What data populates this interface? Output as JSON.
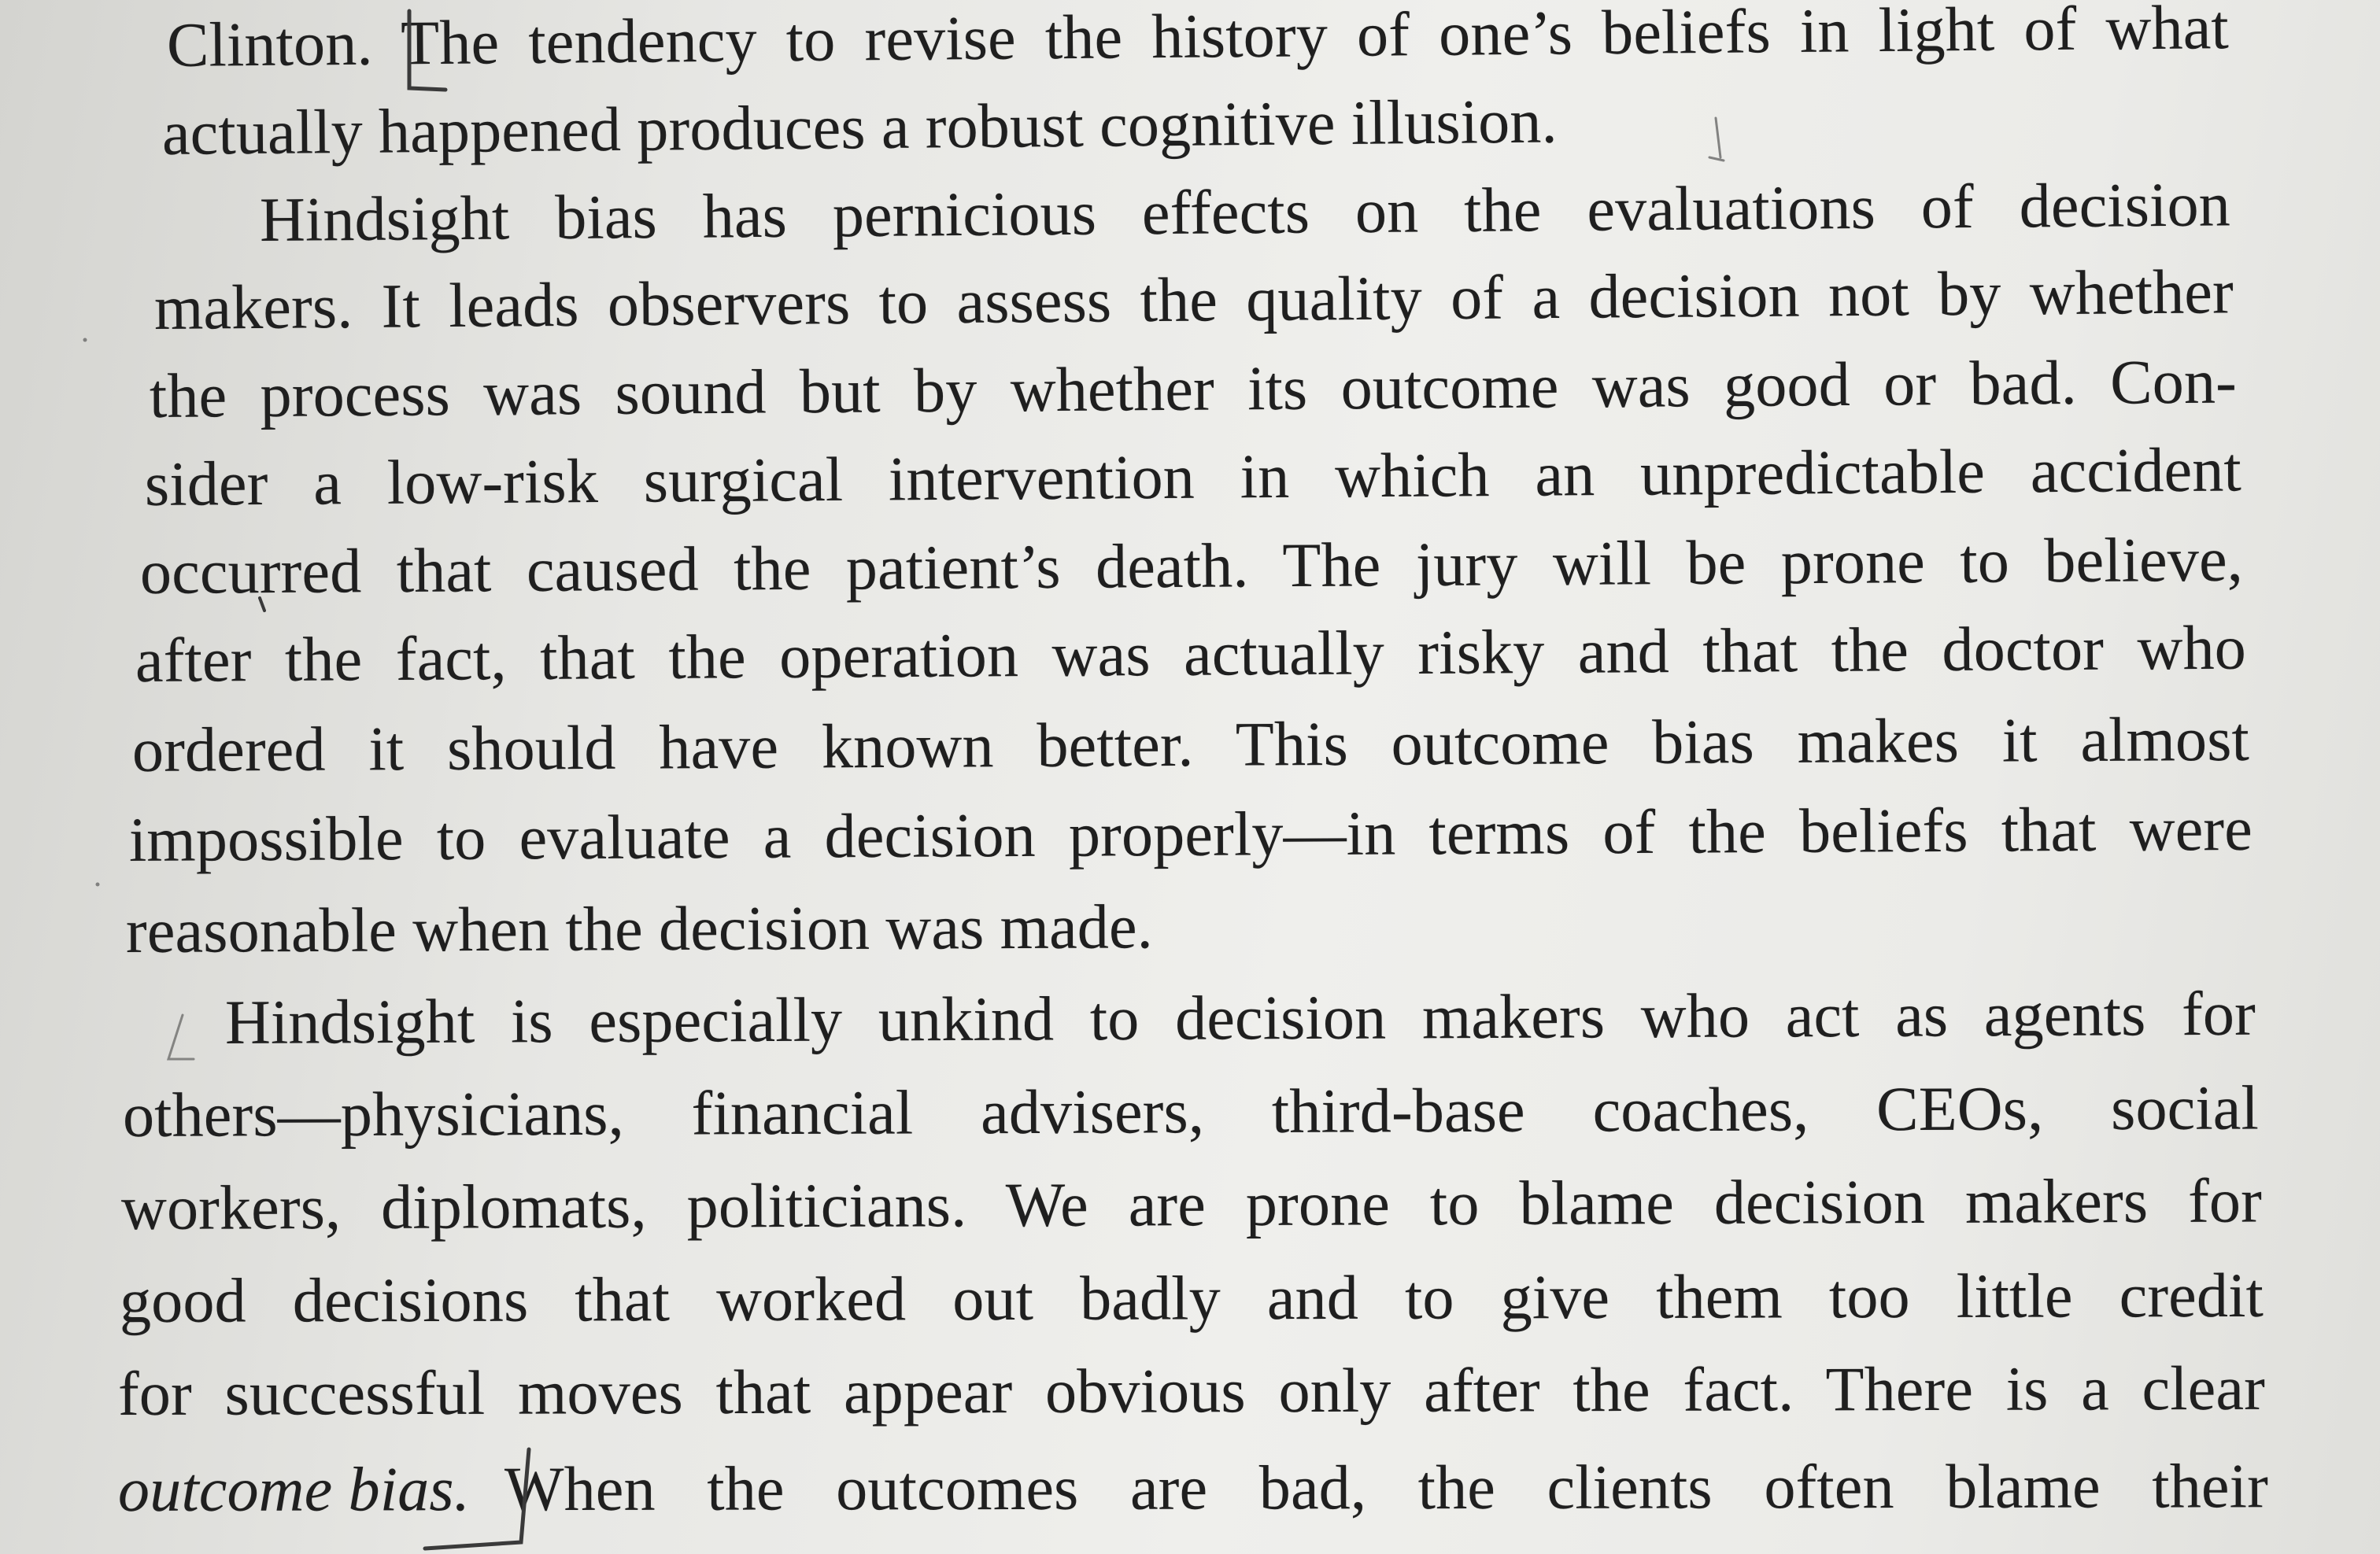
{
  "page": {
    "lines": [
      "Clinton. The tendency to revise the history of one’s beliefs in light of what",
      "actually happened produces a robust cognitive illusion.",
      "Hindsight bias has pernicious effects on the evaluations of decision",
      "makers. It leads observers to assess the quality of a decision not by whether",
      "the process was sound but by whether its outcome was good or bad. Con-",
      "sider a low-risk surgical intervention in which an unpredictable accident",
      "occurred that caused the patient’s death. The jury will be prone to believe,",
      "after the fact, that the operation was actually risky and that the doctor who",
      "ordered it should have known better. This outcome bias makes it almost",
      "impossible to evaluate a decision properly—in terms of the beliefs that were",
      "reasonable when the decision was made.",
      "Hindsight is especially unkind to decision makers who act as agents for",
      "others—physicians, financial advisers, third-base coaches, CEOs, social",
      "workers, diplomats, politicians. We are prone to blame decision makers for",
      "good decisions that worked out badly and to give them too little credit",
      "for successful moves that appear obvious only after the fact. There is a clear"
    ],
    "last_line": {
      "italic_part": "outcome bias.",
      "rest": "When the outcomes are bad, the clients often blame their"
    }
  },
  "colors": {
    "ink": "#1f1f1f",
    "pencil": "#3a3a3a",
    "paper": "#ebebe8"
  }
}
